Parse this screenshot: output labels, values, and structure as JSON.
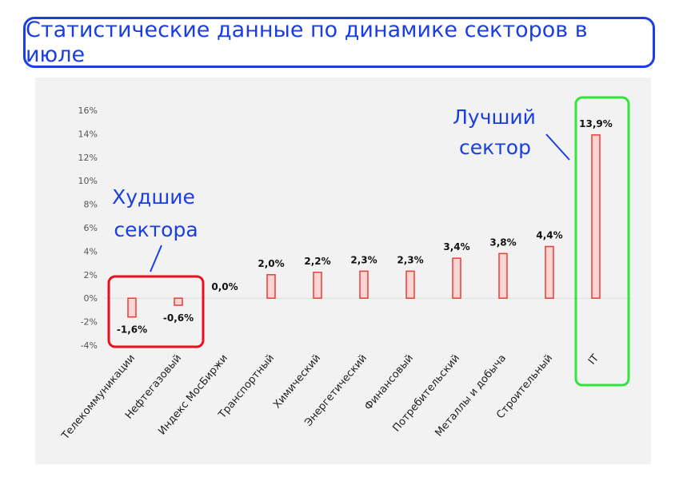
{
  "title": "Статистические данные по динамике секторов в июле",
  "annotations": {
    "worst_line1": "Худшие",
    "worst_line2": "сектора",
    "best_line1": "Лучший",
    "best_line2": "сектор"
  },
  "colors": {
    "accent_blue": "#1a3ee0",
    "bar_fill": "#fbd5d3",
    "bar_stroke": "#ee3b33",
    "worst_box": "#e8101f",
    "best_box": "#33e43a"
  },
  "chart_data": {
    "type": "bar",
    "categories": [
      "Телекоммуникации",
      "Нефтегазовый",
      "Индекс МосБиржи",
      "Транспортный",
      "Химический",
      "Энергетический",
      "Финансовый",
      "Потребительский",
      "Металлы и добыча",
      "Строительный",
      "IT"
    ],
    "values": [
      -1.6,
      -0.6,
      0.0,
      2.0,
      2.2,
      2.3,
      2.3,
      3.4,
      3.8,
      4.4,
      13.9
    ],
    "data_labels": [
      "-1,6%",
      "-0,6%",
      "0,0%",
      "2,0%",
      "2,2%",
      "2,3%",
      "2,3%",
      "3,4%",
      "3,8%",
      "4,4%",
      "13,9%"
    ],
    "y_ticks": [
      "16%",
      "14%",
      "12%",
      "10%",
      "8%",
      "6%",
      "4%",
      "2%",
      "0%",
      "-2%",
      "-4%"
    ],
    "ylim": [
      -4,
      16
    ],
    "grid": false,
    "xlabel": "",
    "ylabel": ""
  }
}
